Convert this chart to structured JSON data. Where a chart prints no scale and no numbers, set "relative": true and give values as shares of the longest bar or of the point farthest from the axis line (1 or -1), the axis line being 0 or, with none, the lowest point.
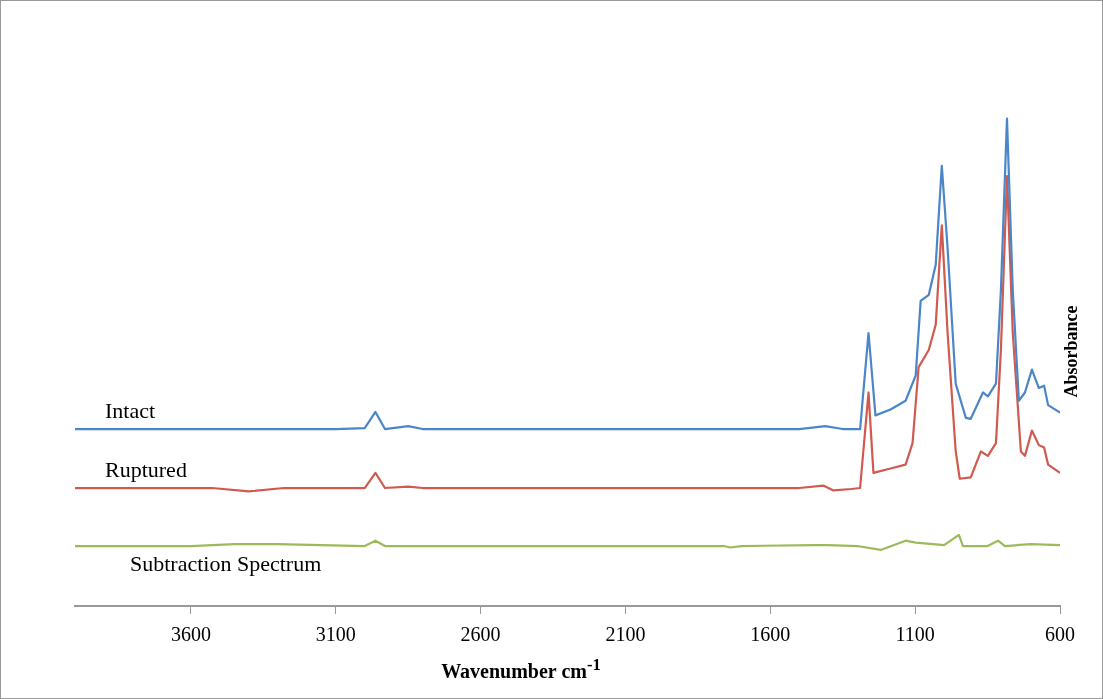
{
  "chart_data": {
    "type": "line",
    "relative": true,
    "xlabel": "Wavenumber cm$^{-1}$",
    "ylabel": "Absorbance",
    "xlim": [
      4000,
      600
    ],
    "xticks": [
      3600,
      3100,
      2600,
      2100,
      1600,
      1100,
      600
    ],
    "marker": "none",
    "line_style": "solid",
    "series": [
      {
        "name": "Intact",
        "color": "#4a86c8",
        "x": [
          4000,
          3100,
          3000,
          2963,
          2930,
          2850,
          2800,
          1500,
          1410,
          1350,
          1290,
          1261,
          1237,
          1185,
          1133,
          1098,
          1081,
          1053,
          1029,
          1008,
          988,
          960,
          925,
          908,
          866,
          849,
          821,
          804,
          783,
          763,
          742,
          721,
          697,
          673,
          655,
          641,
          600
        ],
        "values": [
          0.363,
          0.363,
          0.365,
          0.398,
          0.363,
          0.369,
          0.363,
          0.363,
          0.369,
          0.363,
          0.363,
          0.56,
          0.391,
          0.403,
          0.421,
          0.473,
          0.626,
          0.638,
          0.7,
          0.903,
          0.734,
          0.456,
          0.386,
          0.384,
          0.438,
          0.43,
          0.456,
          0.647,
          1,
          0.647,
          0.421,
          0.438,
          0.485,
          0.447,
          0.452,
          0.412,
          0.397
        ]
      },
      {
        "name": "Ruptured",
        "color": "#d05a4f",
        "x": [
          4000,
          3527,
          3400,
          3278,
          3000,
          2963,
          2930,
          2850,
          2800,
          1500,
          1417,
          1382,
          1320,
          1290,
          1261,
          1244,
          1185,
          1133,
          1109,
          1088,
          1053,
          1029,
          1008,
          988,
          960,
          946,
          908,
          873,
          849,
          821,
          804,
          783,
          763,
          735,
          721,
          697,
          673,
          655,
          641,
          600
        ],
        "values": [
          0.242,
          0.242,
          0.235,
          0.242,
          0.242,
          0.273,
          0.242,
          0.245,
          0.242,
          0.242,
          0.247,
          0.237,
          0.24,
          0.242,
          0.438,
          0.273,
          0.282,
          0.29,
          0.334,
          0.49,
          0.525,
          0.577,
          0.781,
          0.56,
          0.317,
          0.261,
          0.264,
          0.317,
          0.308,
          0.334,
          0.525,
          0.882,
          0.56,
          0.317,
          0.308,
          0.36,
          0.33,
          0.325,
          0.29,
          0.273
        ]
      },
      {
        "name": "Subtraction Spectrum",
        "color": "#9bbb59",
        "x": [
          4000,
          3600,
          3450,
          3300,
          3000,
          2963,
          2930,
          1760,
          1738,
          1700,
          1450,
          1400,
          1300,
          1219,
          1133,
          1098,
          1000,
          949,
          935,
          850,
          814,
          790,
          700,
          600
        ],
        "values": [
          0.123,
          0.123,
          0.127,
          0.127,
          0.123,
          0.134,
          0.123,
          0.123,
          0.12,
          0.123,
          0.125,
          0.125,
          0.123,
          0.115,
          0.134,
          0.13,
          0.125,
          0.146,
          0.123,
          0.123,
          0.134,
          0.123,
          0.127,
          0.125
        ]
      }
    ]
  }
}
